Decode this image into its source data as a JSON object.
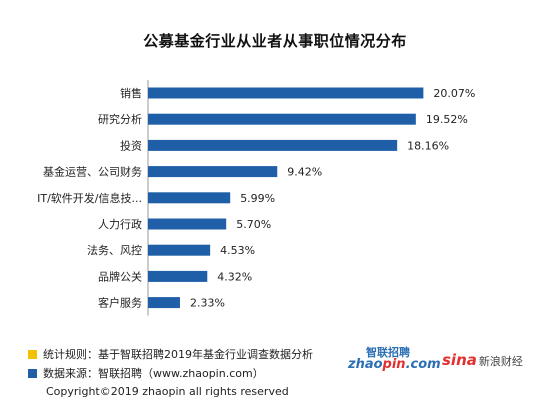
{
  "chart_data": {
    "type": "bar",
    "orientation": "horizontal",
    "title": "公募基金行业从业者从事职位情况分布",
    "categories": [
      "销售",
      "研究分析",
      "投资",
      "基金运营、公司财务",
      "IT/软件开发/信息技...",
      "人力行政",
      "法务、风控",
      "品牌公关",
      "客户服务"
    ],
    "values": [
      20.07,
      19.52,
      18.16,
      9.42,
      5.99,
      5.7,
      4.53,
      4.32,
      2.33
    ],
    "value_labels": [
      "20.07%",
      "19.52%",
      "18.16%",
      "9.42%",
      "5.99%",
      "5.70%",
      "4.53%",
      "4.32%",
      "2.33%"
    ],
    "xlim": [
      0,
      21.5
    ],
    "bar_color": "#1f5fa8",
    "grid": false
  },
  "notes": {
    "rule": "统计规则：基于智联招聘2019年基金行业调查数据分析",
    "source": "数据来源：智联招聘（www.zhaopin.com）",
    "rule_color": "#f2c200",
    "source_color": "#1f5fa8"
  },
  "copyright": "Copyright©2019 zhaopin all rights reserved",
  "logos": {
    "zhaopin_cn": "智联招聘",
    "zhaopin_en_a": "zhao",
    "zhaopin_en_b": "pin",
    "zhaopin_en_c": ".com",
    "sina_mark": "sina",
    "sina_text": "新浪财经"
  }
}
